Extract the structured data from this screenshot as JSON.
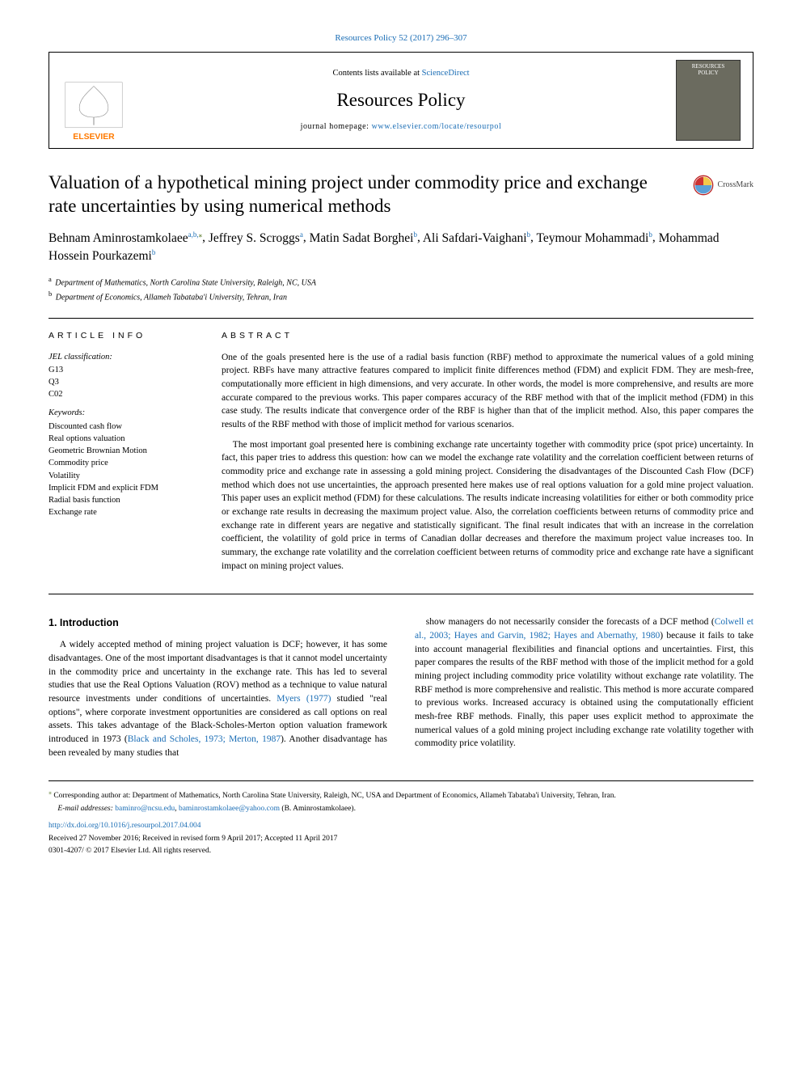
{
  "top_citation": {
    "pre": "",
    "link": "Resources Policy 52 (2017) 296–307"
  },
  "masthead": {
    "contents_pre": "Contents lists available at ",
    "contents_link": "ScienceDirect",
    "journal_name": "Resources Policy",
    "homepage_pre": "journal homepage: ",
    "homepage_link": "www.elsevier.com/locate/resourpol",
    "elsevier_label": "ELSEVIER",
    "cover_top": "RESOURCES",
    "cover_bottom": "POLICY"
  },
  "article": {
    "title": "Valuation of a hypothetical mining project under commodity price and exchange rate uncertainties by using numerical methods",
    "crossmark": "CrossMark",
    "authors_html_parts": [
      {
        "name": "Behnam Aminrostamkolaee",
        "aff": "a,b,",
        "corr": "⁎"
      },
      {
        "name": "Jeffrey S. Scroggs",
        "aff": "a"
      },
      {
        "name": "Matin Sadat Borghei",
        "aff": "b"
      },
      {
        "name": "Ali Safdari-Vaighani",
        "aff": "b"
      },
      {
        "name": "Teymour Mohammadi",
        "aff": "b"
      },
      {
        "name": "Mohammad Hossein Pourkazemi",
        "aff": "b"
      }
    ],
    "affiliations": [
      {
        "key": "a",
        "text": "Department of Mathematics, North Carolina State University, Raleigh, NC, USA"
      },
      {
        "key": "b",
        "text": "Department of Economics, Allameh Tabataba'i University, Tehran, Iran"
      }
    ]
  },
  "info": {
    "heading": "ARTICLE INFO",
    "jel_label": "JEL classification:",
    "jel": [
      "G13",
      "Q3",
      "C02"
    ],
    "kw_label": "Keywords:",
    "keywords": [
      "Discounted cash flow",
      "Real options valuation",
      "Geometric Brownian Motion",
      "Commodity price",
      "Volatility",
      "Implicit FDM and explicit FDM",
      "Radial basis function",
      "Exchange rate"
    ]
  },
  "abstract": {
    "heading": "ABSTRACT",
    "p1": "One of the goals presented here is the use of a radial basis function (RBF) method to approximate the numerical values of a gold mining project. RBFs have many attractive features compared to implicit finite differences method (FDM) and explicit FDM. They are mesh-free, computationally more efficient in high dimensions, and very accurate. In other words, the model is more comprehensive, and results are more accurate compared to the previous works. This paper compares accuracy of the RBF method with that of the implicit method (FDM) in this case study. The results indicate that convergence order of the RBF is higher than that of the implicit method. Also, this paper compares the results of the RBF method with those of implicit method for various scenarios.",
    "p2": "The most important goal presented here is combining exchange rate uncertainty together with commodity price (spot price) uncertainty. In fact, this paper tries to address this question: how can we model the exchange rate volatility and the correlation coefficient between returns of commodity price and exchange rate in assessing a gold mining project. Considering the disadvantages of the Discounted Cash Flow (DCF) method which does not use uncertainties, the approach presented here makes use of real options valuation for a gold mine project valuation. This paper uses an explicit method (FDM) for these calculations. The results indicate increasing volatilities for either or both commodity price or exchange rate results in decreasing the maximum project value. Also, the correlation coefficients between returns of commodity price and exchange rate in different years are negative and statistically significant. The final result indicates that with an increase in the correlation coefficient, the volatility of gold price in terms of Canadian dollar decreases and therefore the maximum project value increases too. In summary, the exchange rate volatility and the correlation coefficient between returns of commodity price and exchange rate have a significant impact on mining project values."
  },
  "intro": {
    "heading": "1. Introduction",
    "left": "A widely accepted method of mining project valuation is DCF; however, it has some disadvantages. One of the most important disadvantages is that it cannot model uncertainty in the commodity price and uncertainty in the exchange rate. This has led to several studies that use the Real Options Valuation (ROV) method as a technique to value natural resource investments under conditions of uncertainties. {LINK1} studied \"real options\", where corporate investment opportunities are considered as call options on real assets. This takes advantage of the Black-Scholes-Merton option valuation framework introduced in 1973 ({LINK2}). Another disadvantage has been revealed by many studies that",
    "left_link1": "Myers (1977)",
    "left_link2": "Black and Scholes, 1973; Merton, 1987",
    "right": "show managers do not necessarily consider the forecasts of a DCF method ({LINK3}) because it fails to take into account managerial flexibilities and financial options and uncertainties. First, this paper compares the results of the RBF method with those of the implicit method for a gold mining project including commodity price volatility without exchange rate volatility. The RBF method is more comprehensive and realistic. This method is more accurate compared to previous works. Increased accuracy is obtained using the computationally efficient mesh-free RBF methods. Finally, this paper uses explicit method to approximate the numerical values of a gold mining project including exchange rate volatility together with commodity price volatility.",
    "right_link3": "Colwell et al., 2003; Hayes and Garvin, 1982; Hayes and Abernathy, 1980"
  },
  "footnotes": {
    "corr": "Corresponding author at: Department of Mathematics, North Carolina State University, Raleigh, NC, USA and Department of Economics, Allameh Tabataba'i University, Tehran, Iran.",
    "email_label": "E-mail addresses:",
    "email1": "baminro@ncsu.edu",
    "email2": "baminrostamkolaee@yahoo.com",
    "email_tail": "(B. Aminrostamkolaee).",
    "doi": "http://dx.doi.org/10.1016/j.resourpol.2017.04.004",
    "history": "Received 27 November 2016; Received in revised form 9 April 2017; Accepted 11 April 2017",
    "copyright": "0301-4207/ © 2017 Elsevier Ltd. All rights reserved."
  },
  "colors": {
    "link": "#1a6db5",
    "corr": "#5a7a2a",
    "rule": "#000000",
    "cover_bg": "#6b6b5f"
  }
}
